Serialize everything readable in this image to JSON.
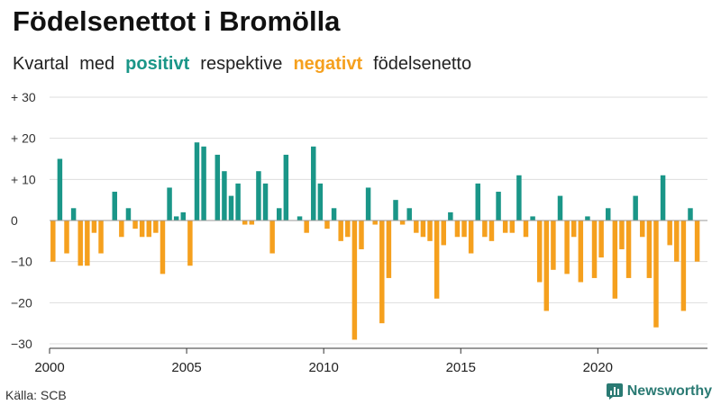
{
  "header": {
    "title": "Födelsenettot i Bromölla",
    "subtitle_parts": [
      "Kvartal",
      "med",
      "positivt",
      "respektive",
      "negativt",
      "födelsenetto"
    ]
  },
  "footer": {
    "source": "Källa: SCB",
    "brand": "Newsworthy"
  },
  "colors": {
    "positive": "#1a9688",
    "negative": "#f5a01e",
    "grid": "#dddddd",
    "axis": "#333333"
  },
  "chart_data": {
    "type": "bar",
    "title": "Födelsenettot i Bromölla",
    "xlabel": "",
    "ylabel": "",
    "ylim": [
      -30,
      30
    ],
    "xlim": [
      2000,
      2024
    ],
    "y_ticks": [
      30,
      20,
      10,
      0,
      -10,
      -20,
      -30
    ],
    "y_tick_labels": [
      "+ 30",
      "+ 20",
      "+ 10",
      "0",
      "−10",
      "−20",
      "−30"
    ],
    "x_ticks": [
      2000,
      2005,
      2010,
      2015,
      2020
    ],
    "x_tick_labels": [
      "2000",
      "2005",
      "2010",
      "2015",
      "2020"
    ],
    "start_year": 2000,
    "periods_per_year": 4,
    "values": [
      -10,
      15,
      -8,
      3,
      -11,
      -11,
      -3,
      -8,
      0,
      7,
      -4,
      3,
      -2,
      -4,
      -4,
      -3,
      -13,
      8,
      1,
      2,
      -11,
      19,
      18,
      0,
      16,
      12,
      6,
      9,
      -1,
      -1,
      12,
      9,
      -8,
      3,
      16,
      0,
      1,
      -3,
      18,
      9,
      -2,
      3,
      -5,
      -4,
      -29,
      -7,
      8,
      -1,
      -25,
      -14,
      5,
      -1,
      3,
      -3,
      -4,
      -5,
      -19,
      -6,
      2,
      -4,
      -4,
      -8,
      9,
      -4,
      -5,
      7,
      -3,
      -3,
      11,
      -4,
      1,
      -15,
      -22,
      -12,
      6,
      -13,
      -4,
      -15,
      1,
      -14,
      -9,
      3,
      -19,
      -7,
      -14,
      6,
      -4,
      -14,
      -26,
      11,
      -6,
      -10,
      -22,
      3,
      -10
    ]
  }
}
